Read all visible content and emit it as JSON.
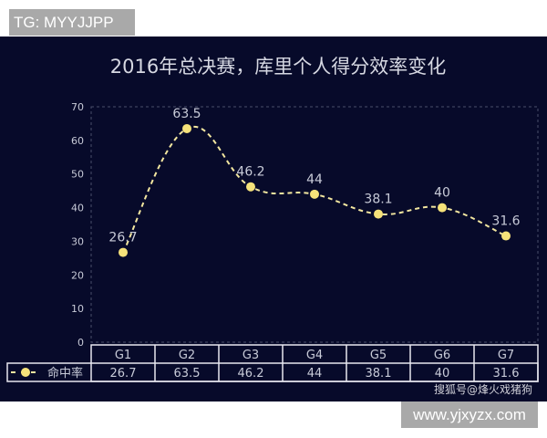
{
  "overlays": {
    "top_label": "TG: MYYJJPP",
    "bottom_label": "www.yjxyzx.com",
    "watermark": "搜狐号@烽火戏猪狗"
  },
  "colors": {
    "background": "#070a2a",
    "line": "#f3e7a0",
    "marker": "#f6e27a",
    "text": "#c8cbd8"
  },
  "chart_data": {
    "type": "line",
    "title": "2016年总决赛，库里个人得分效率变化",
    "categories": [
      "G1",
      "G2",
      "G3",
      "G4",
      "G5",
      "G6",
      "G7"
    ],
    "series": [
      {
        "name": "命中率",
        "values": [
          26.7,
          63.5,
          46.2,
          44,
          38.1,
          40,
          31.6
        ]
      }
    ],
    "ylim": [
      0,
      70
    ],
    "yticks": [
      0,
      10,
      20,
      30,
      40,
      50,
      60,
      70
    ],
    "grid": false,
    "line_style": "dashed-smooth",
    "legend": "data-table-bottom"
  }
}
